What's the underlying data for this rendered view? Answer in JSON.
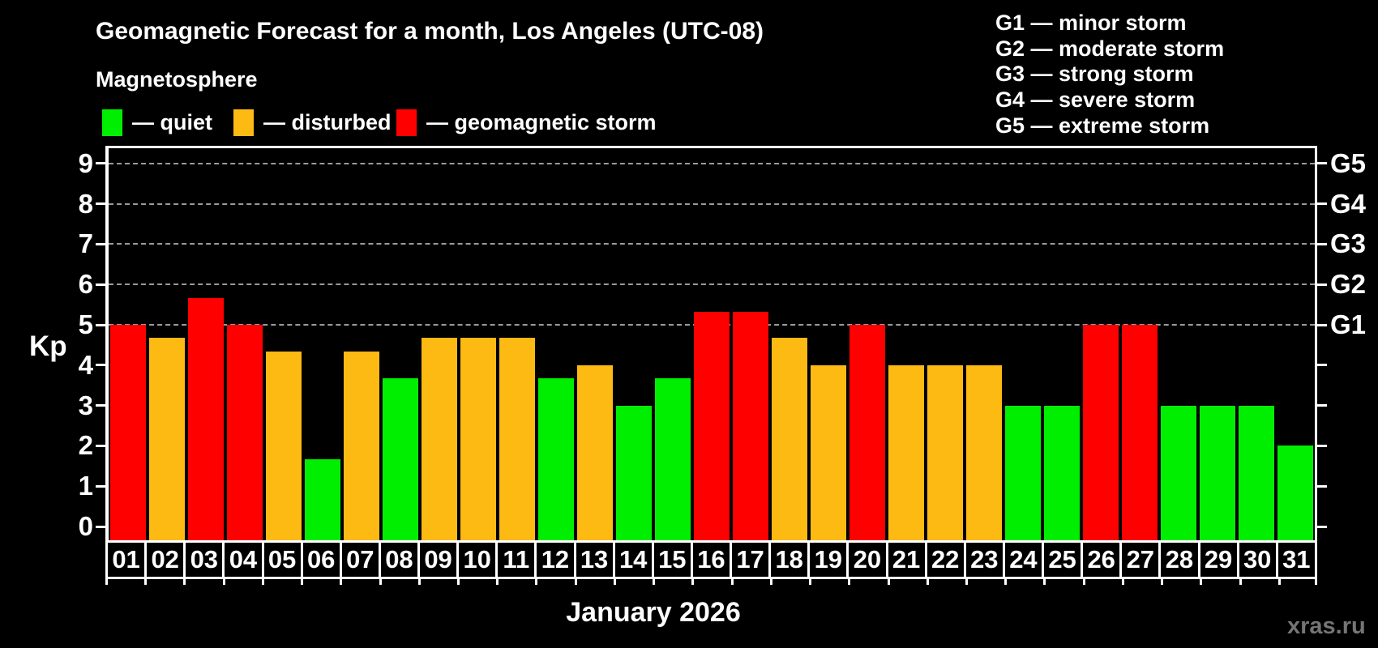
{
  "header": {
    "title": "Geomagnetic Forecast for a month, Los Angeles (UTC-08)",
    "subtitle": "Magnetosphere"
  },
  "legend": {
    "items": [
      {
        "state": "quiet",
        "label": "— quiet"
      },
      {
        "state": "disturbed",
        "label": "— disturbed"
      },
      {
        "state": "storm",
        "label": "— geomagnetic storm"
      }
    ]
  },
  "g_scale_legend": [
    "G1 — minor storm",
    "G2 — moderate storm",
    "G3 — strong storm",
    "G4 — severe storm",
    "G5 — extreme storm"
  ],
  "colors": {
    "quiet": "#00ef00",
    "disturbed": "#fdba12",
    "storm": "#ff0000",
    "grid": "#9a9a9a",
    "axis": "#ffffff",
    "watermark": "#757575"
  },
  "axes": {
    "kp_label": "Kp",
    "yticks": [
      0,
      1,
      2,
      3,
      4,
      5,
      6,
      7,
      8,
      9
    ],
    "right_labels": [
      {
        "kp": 5,
        "label": "G1"
      },
      {
        "kp": 6,
        "label": "G2"
      },
      {
        "kp": 7,
        "label": "G3"
      },
      {
        "kp": 8,
        "label": "G4"
      },
      {
        "kp": 9,
        "label": "G5"
      }
    ]
  },
  "footer": {
    "xlabel": "January 2026",
    "watermark": "xras.ru"
  },
  "chart_data": {
    "type": "bar",
    "title": "Geomagnetic Forecast for a month, Los Angeles (UTC-08)",
    "subtitle": "Magnetosphere",
    "xlabel": "January 2026",
    "ylabel": "Kp",
    "ylim": [
      -0.35,
      9.4
    ],
    "yticks": [
      0,
      1,
      2,
      3,
      4,
      5,
      6,
      7,
      8,
      9
    ],
    "gridlines_at": [
      5,
      6,
      7,
      8,
      9
    ],
    "grid": "horizontal dashed at Kp 5-9 (G1-G5 levels)",
    "legend_position": "top-left",
    "categories": [
      "01",
      "02",
      "03",
      "04",
      "05",
      "06",
      "07",
      "08",
      "09",
      "10",
      "11",
      "12",
      "13",
      "14",
      "15",
      "16",
      "17",
      "18",
      "19",
      "20",
      "21",
      "22",
      "23",
      "24",
      "25",
      "26",
      "27",
      "28",
      "29",
      "30",
      "31"
    ],
    "values": [
      5.0,
      4.67,
      5.67,
      5.0,
      4.33,
      1.67,
      4.33,
      3.67,
      4.67,
      4.67,
      4.67,
      3.67,
      4.0,
      3.0,
      3.67,
      5.33,
      5.33,
      4.67,
      4.0,
      5.0,
      4.0,
      4.0,
      4.0,
      3.0,
      3.0,
      5.0,
      5.0,
      3.0,
      3.0,
      3.0,
      2.0
    ],
    "states": [
      "storm",
      "disturbed",
      "storm",
      "storm",
      "disturbed",
      "quiet",
      "disturbed",
      "quiet",
      "disturbed",
      "disturbed",
      "disturbed",
      "quiet",
      "disturbed",
      "quiet",
      "quiet",
      "storm",
      "storm",
      "disturbed",
      "disturbed",
      "storm",
      "disturbed",
      "disturbed",
      "disturbed",
      "quiet",
      "quiet",
      "storm",
      "storm",
      "quiet",
      "quiet",
      "quiet",
      "quiet"
    ]
  }
}
